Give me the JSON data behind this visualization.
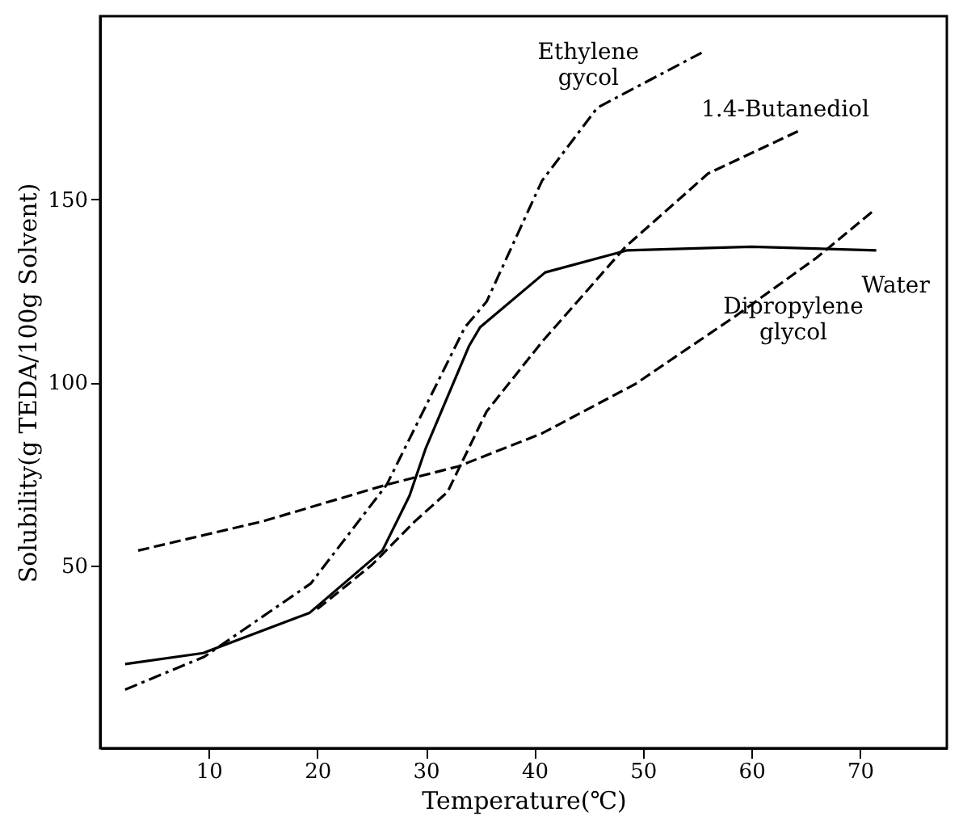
{
  "chart_data": {
    "type": "line",
    "xlabel": "Temperature(℃)",
    "ylabel": "Solubility(g TEDA/100g Solvent)",
    "xlim": [
      0,
      78
    ],
    "ylim": [
      0,
      200
    ],
    "xticks": [
      10,
      20,
      30,
      40,
      50,
      60,
      70
    ],
    "yticks": [
      50,
      100,
      150
    ],
    "grid": false,
    "marker": "none",
    "series": [
      {
        "name": "Ethylene gycol",
        "color": "#000000",
        "line_style": "dashdot",
        "x": [
          2.3,
          9.6,
          19.4,
          26.4,
          33.6,
          35.6,
          40.7,
          45.8,
          55.4
        ],
        "values": [
          16,
          25,
          45,
          72,
          115,
          122,
          155,
          175,
          190
        ]
      },
      {
        "name": "1.4-Butanediol",
        "color": "#000000",
        "line_style": "dashed",
        "x": [
          20,
          25,
          29,
          32,
          35.6,
          40.7,
          48.4,
          56,
          64.6
        ],
        "values": [
          38,
          50,
          62,
          70,
          92,
          111,
          137,
          157,
          169
        ]
      },
      {
        "name": "Water",
        "color": "#000000",
        "line_style": "solid",
        "x": [
          2.3,
          9.5,
          19.3,
          26,
          28.5,
          30,
          34,
          35,
          41,
          48.5,
          60,
          71.5
        ],
        "values": [
          23,
          26,
          37,
          54,
          69,
          82,
          110,
          115,
          130,
          136,
          137,
          136
        ]
      },
      {
        "name": "Dipropylene glycol",
        "color": "#000000",
        "line_style": "dashed",
        "x": [
          3.5,
          15,
          26.4,
          33,
          40.7,
          49.3,
          58.5,
          66,
          71.3
        ],
        "values": [
          54,
          62,
          72,
          77,
          86,
          99.5,
          118,
          134,
          147
        ]
      }
    ]
  }
}
